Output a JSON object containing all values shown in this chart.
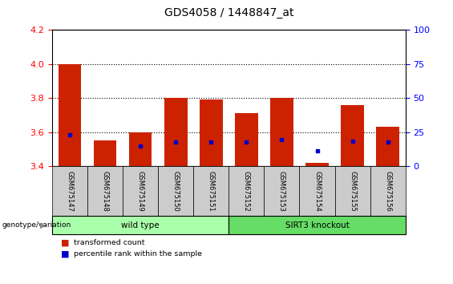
{
  "title": "GDS4058 / 1448847_at",
  "samples": [
    "GSM675147",
    "GSM675148",
    "GSM675149",
    "GSM675150",
    "GSM675151",
    "GSM675152",
    "GSM675153",
    "GSM675154",
    "GSM675155",
    "GSM675156"
  ],
  "bar_heights": [
    4.0,
    3.55,
    3.6,
    3.8,
    3.79,
    3.71,
    3.8,
    3.42,
    3.76,
    3.63
  ],
  "blue_dot_y": [
    3.585,
    null,
    3.52,
    3.54,
    3.54,
    3.54,
    3.555,
    3.49,
    3.545,
    3.54
  ],
  "bar_color": "#cc2200",
  "blue_color": "#0000cc",
  "ylim_left": [
    3.4,
    4.2
  ],
  "ylim_right": [
    0,
    100
  ],
  "yticks_left": [
    3.4,
    3.6,
    3.8,
    4.0,
    4.2
  ],
  "yticks_right": [
    0,
    25,
    50,
    75,
    100
  ],
  "groups": [
    {
      "label": "wild type",
      "start": 0,
      "end": 5,
      "color": "#aaffaa"
    },
    {
      "label": "SIRT3 knockout",
      "start": 5,
      "end": 10,
      "color": "#66dd66"
    }
  ],
  "legend_items": [
    {
      "color": "#cc2200",
      "label": "transformed count"
    },
    {
      "color": "#0000cc",
      "label": "percentile rank within the sample"
    }
  ],
  "bar_width": 0.65,
  "background_color": "#ffffff",
  "plot_bg": "#ffffff",
  "xcell_bg": "#cccccc",
  "grid_color": "#000000",
  "title_fontsize": 10,
  "tick_fontsize": 8,
  "label_fontsize": 7.5
}
